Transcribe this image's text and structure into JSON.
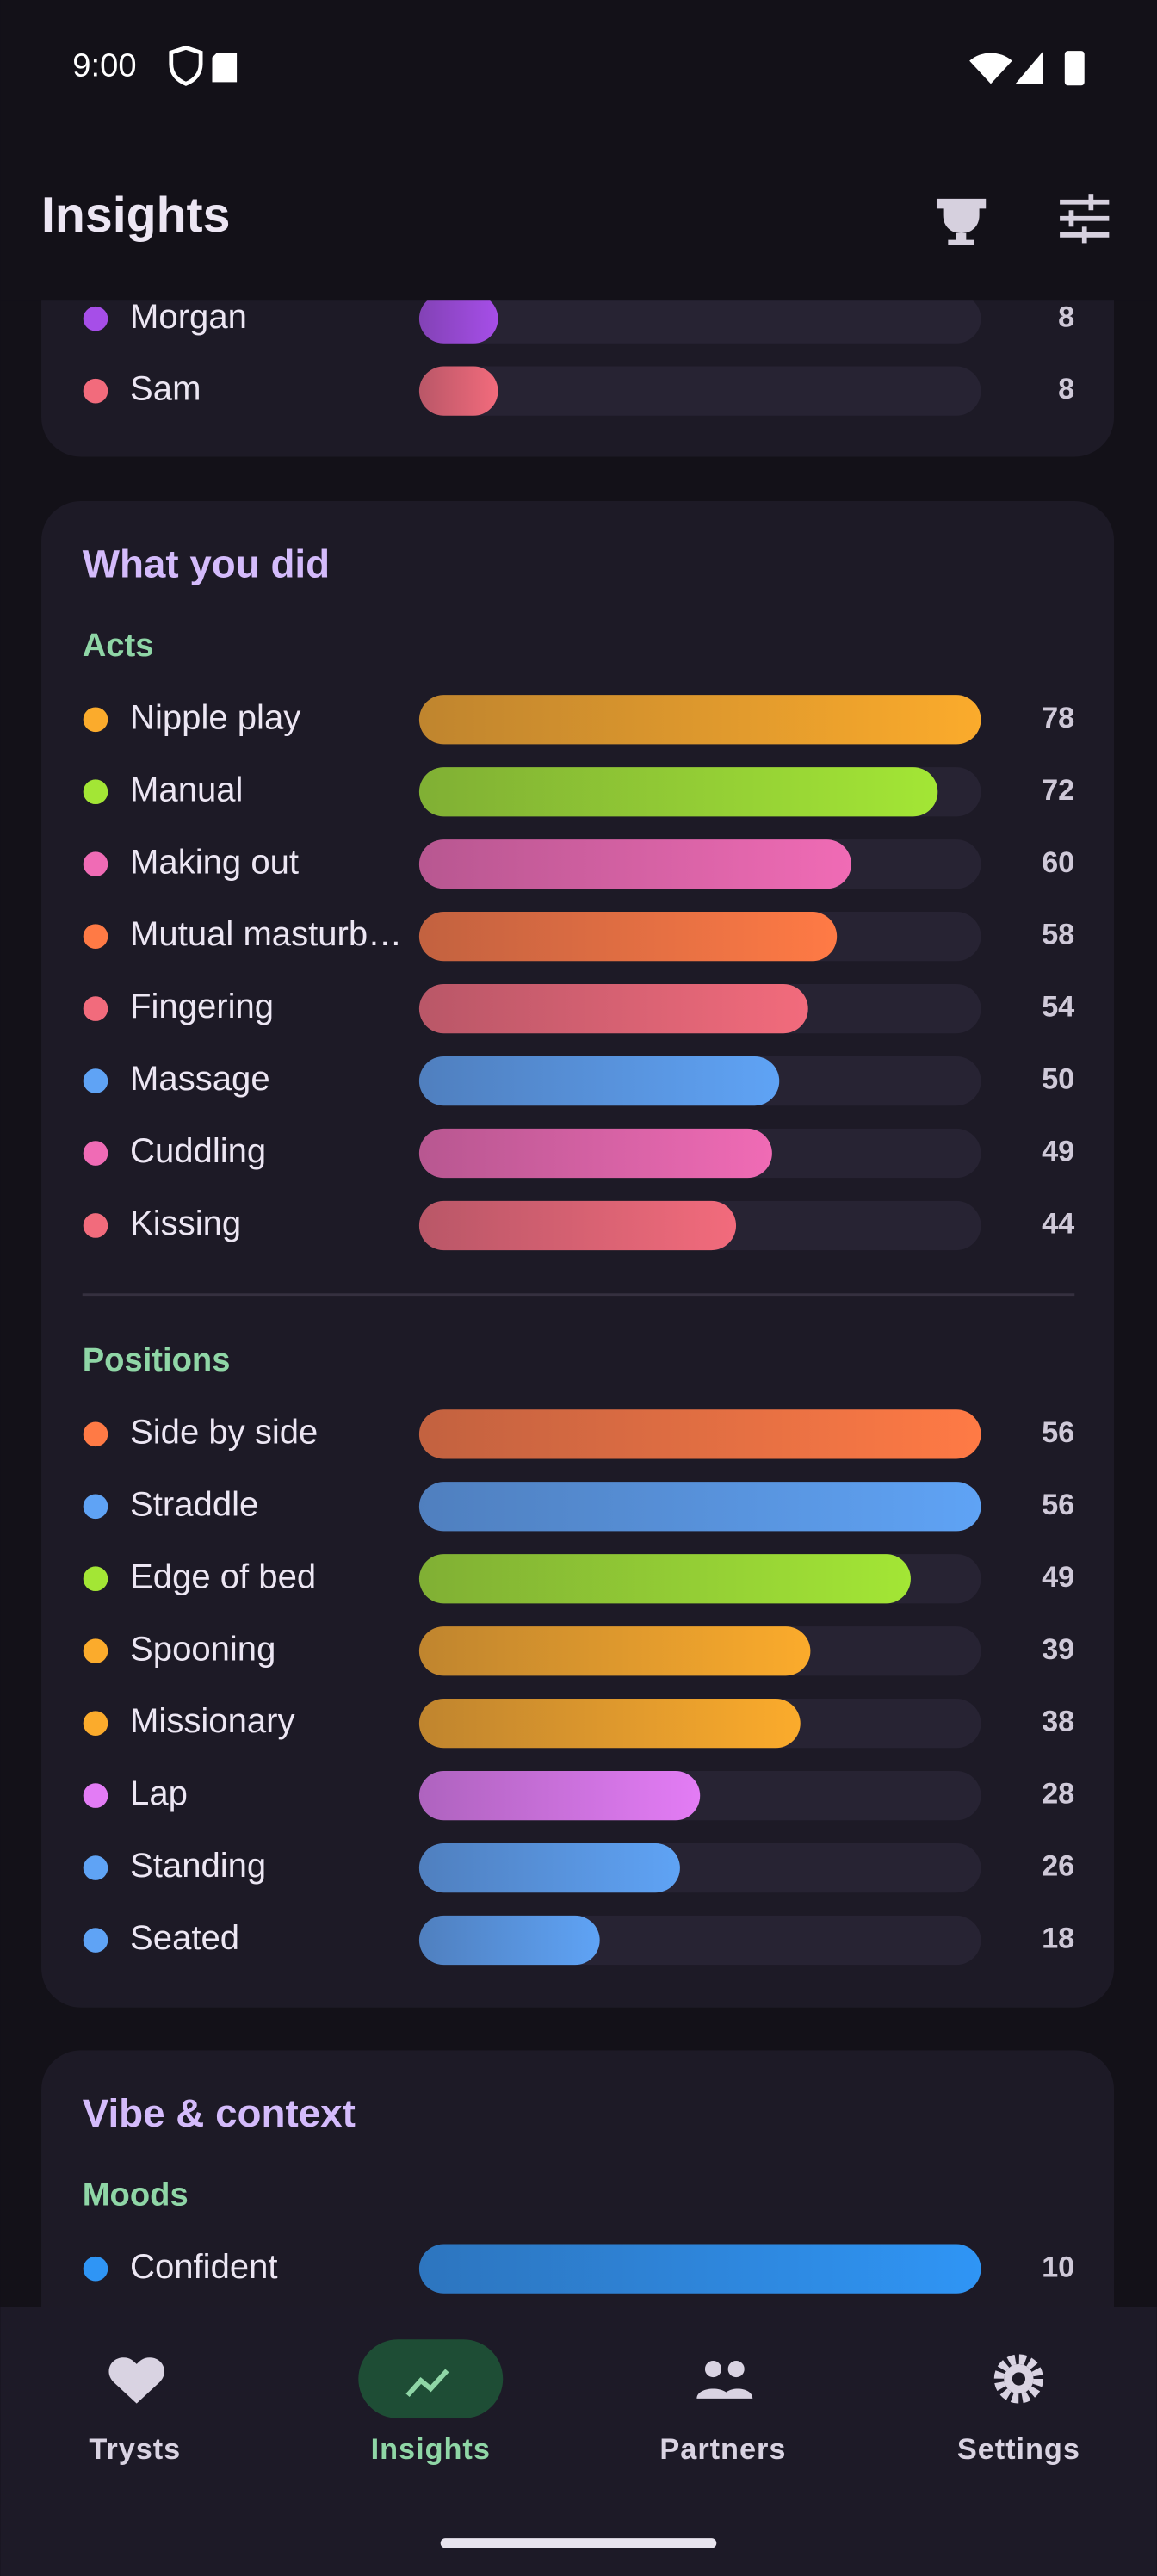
{
  "status_bar": {
    "time": "9:00"
  },
  "app_bar": {
    "title": "Insights"
  },
  "sections": [
    {
      "groups": [
        {
          "xlim": [
            0,
            57
          ],
          "rows": [
            {
              "label": "Morgan",
              "value": 8,
              "color": "#a64ee8"
            },
            {
              "label": "Sam",
              "value": 8,
              "color": "#f26b7c"
            }
          ]
        }
      ]
    },
    {
      "title": "What you did",
      "groups": [
        {
          "title": "Acts",
          "xlim": [
            0,
            78
          ],
          "rows": [
            {
              "label": "Nipple play",
              "value": 78,
              "color": "#fbab2c"
            },
            {
              "label": "Manual",
              "value": 72,
              "color": "#a3e635"
            },
            {
              "label": "Making out",
              "value": 60,
              "color": "#f06bb5"
            },
            {
              "label": "Mutual masturb…",
              "value": 58,
              "color": "#ff7a45"
            },
            {
              "label": "Fingering",
              "value": 54,
              "color": "#f26b7c"
            },
            {
              "label": "Massage",
              "value": 50,
              "color": "#5fa3f5"
            },
            {
              "label": "Cuddling",
              "value": 49,
              "color": "#f06bb5"
            },
            {
              "label": "Kissing",
              "value": 44,
              "color": "#f26b7c"
            }
          ]
        },
        {
          "title": "Positions",
          "xlim": [
            0,
            56
          ],
          "rows": [
            {
              "label": "Side by side",
              "value": 56,
              "color": "#ff7a45"
            },
            {
              "label": "Straddle",
              "value": 56,
              "color": "#5fa3f5"
            },
            {
              "label": "Edge of bed",
              "value": 49,
              "color": "#a3e635"
            },
            {
              "label": "Spooning",
              "value": 39,
              "color": "#fbab2c"
            },
            {
              "label": "Missionary",
              "value": 38,
              "color": "#fbab2c"
            },
            {
              "label": "Lap",
              "value": 28,
              "color": "#e37cf5"
            },
            {
              "label": "Standing",
              "value": 26,
              "color": "#5fa3f5"
            },
            {
              "label": "Seated",
              "value": 18,
              "color": "#5fa3f5"
            }
          ]
        }
      ]
    },
    {
      "title": "Vibe & context",
      "groups": [
        {
          "title": "Moods",
          "xlim": [
            0,
            10
          ],
          "rows": [
            {
              "label": "Confident",
              "value": 10,
              "color": "#2f95f5"
            }
          ]
        }
      ]
    }
  ],
  "nav": {
    "items": [
      "Trysts",
      "Insights",
      "Partners",
      "Settings"
    ],
    "active": 1
  }
}
